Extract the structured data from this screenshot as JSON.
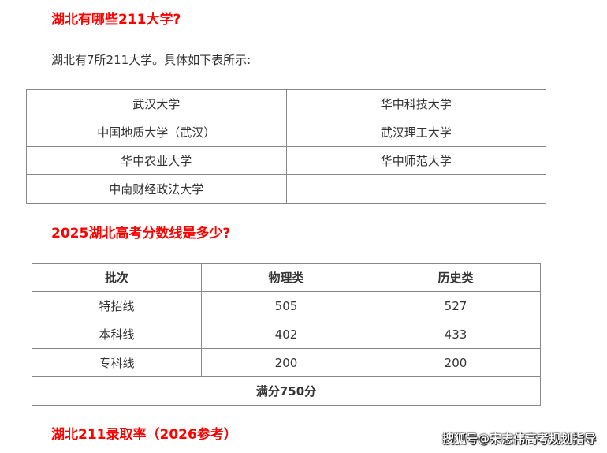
{
  "heading1": "湖北有哪些211大学?",
  "intro": "湖北有7所211大学。具体如下表所示:",
  "universities": [
    [
      "武汉大学",
      "华中科技大学"
    ],
    [
      "中国地质大学（武汉）",
      "武汉理工大学"
    ],
    [
      "华中农业大学",
      "华中师范大学"
    ],
    [
      "中南财经政法大学",
      ""
    ]
  ],
  "heading2": "2025湖北高考分数线是多少?",
  "scores": {
    "headers": [
      "批次",
      "物理类",
      "历史类"
    ],
    "rows": [
      [
        "特招线",
        "505",
        "527"
      ],
      [
        "本科线",
        "402",
        "433"
      ],
      [
        "专科线",
        "200",
        "200"
      ]
    ],
    "footer": "满分750分"
  },
  "heading3": "湖北211录取率（2026参考）",
  "watermark": "搜狐号@宋志伟高考规划指导",
  "accent_color": "#ff0000"
}
